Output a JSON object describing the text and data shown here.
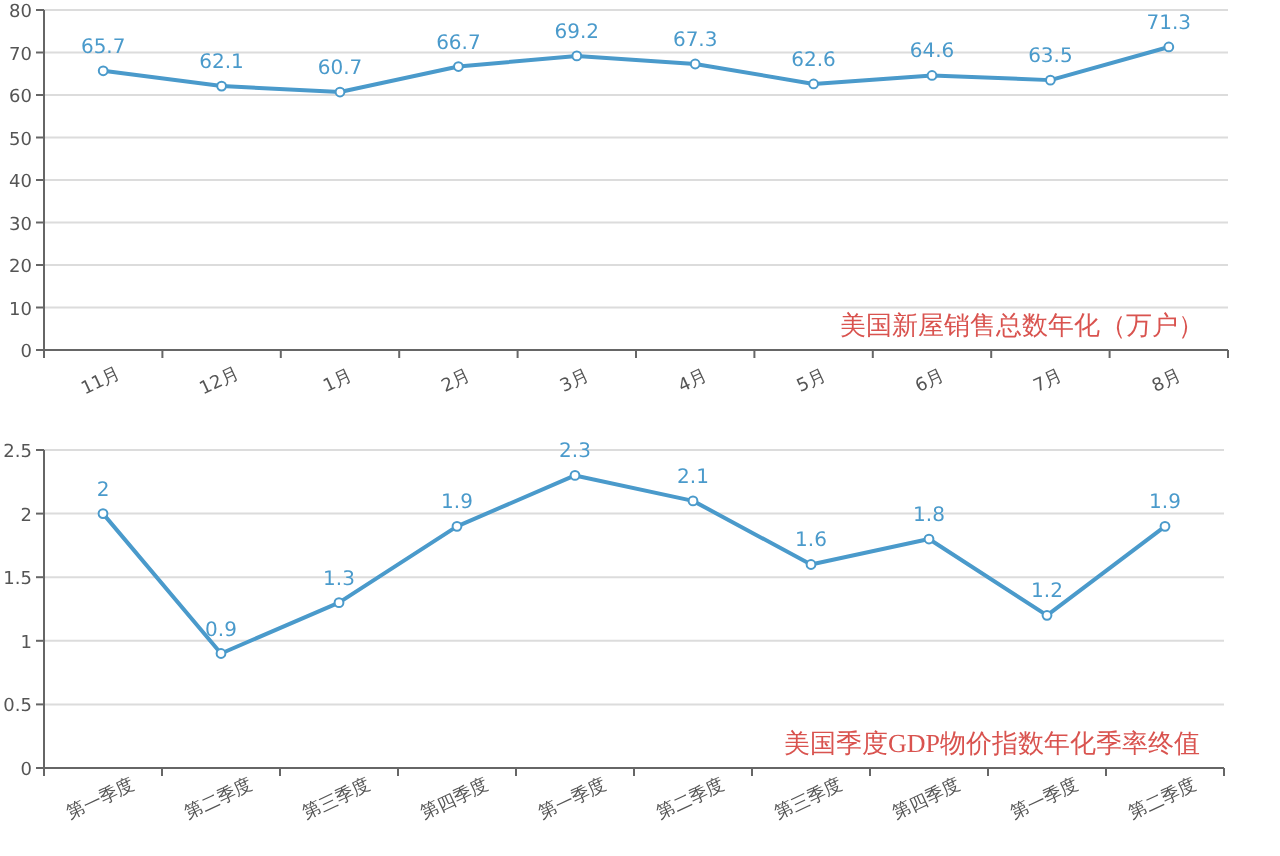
{
  "chart_data": [
    {
      "type": "line",
      "title": "美国新屋销售总数年化（万户）",
      "categories": [
        "11月",
        "12月",
        "1月",
        "2月",
        "3月",
        "4月",
        "5月",
        "6月",
        "7月",
        "8月"
      ],
      "series": [
        {
          "color": "#4a9acb",
          "values": [
            65.7,
            62.1,
            60.7,
            66.7,
            69.2,
            67.3,
            62.6,
            64.6,
            63.5,
            71.3
          ]
        }
      ],
      "ylim": [
        0,
        80
      ],
      "yticks": [
        0,
        10,
        20,
        30,
        40,
        50,
        60,
        70,
        80
      ],
      "grid": "y",
      "marker": "circle",
      "line_style": "solid",
      "data_labels": true
    },
    {
      "type": "line",
      "title": "美国季度GDP物价指数年化季率终值",
      "categories": [
        "第一季度",
        "第二季度",
        "第三季度",
        "第四季度",
        "第一季度",
        "第二季度",
        "第三季度",
        "第四季度",
        "第一季度",
        "第二季度"
      ],
      "series": [
        {
          "color": "#4a9acb",
          "values": [
            2,
            0.9,
            1.3,
            1.9,
            2.3,
            2.1,
            1.6,
            1.8,
            1.2,
            1.9
          ]
        }
      ],
      "ylim": [
        0,
        2.5
      ],
      "yticks": [
        0,
        0.5,
        1,
        1.5,
        2,
        2.5
      ],
      "grid": "y",
      "marker": "circle",
      "line_style": "solid",
      "data_labels": true
    }
  ]
}
